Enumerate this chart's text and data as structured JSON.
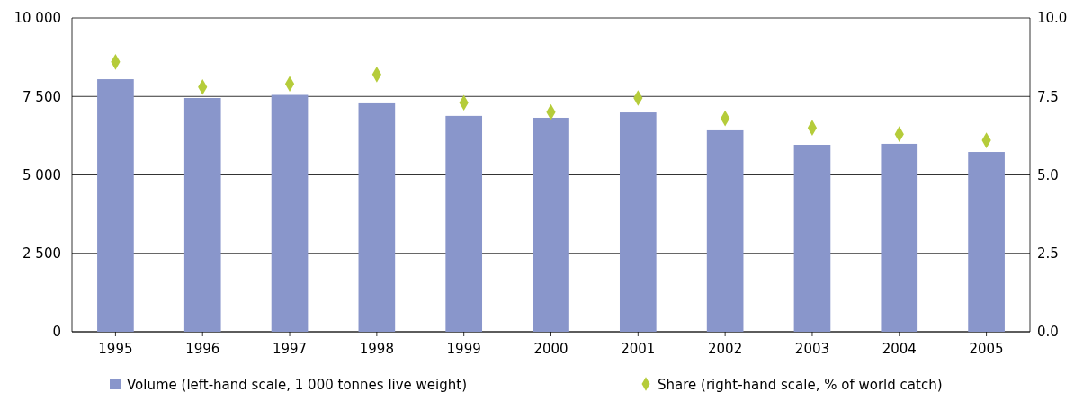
{
  "chart_data": {
    "type": "bar",
    "categories": [
      "1995",
      "1996",
      "1997",
      "1998",
      "1999",
      "2000",
      "2001",
      "2002",
      "2003",
      "2004",
      "2005"
    ],
    "series": [
      {
        "name": "Volume (left-hand scale, 1 000 tonnes live weight)",
        "color": "#8996cb",
        "values": [
          8050,
          7450,
          7550,
          7280,
          6880,
          6820,
          6990,
          6420,
          5960,
          5990,
          5730
        ]
      },
      {
        "name": "Share (right-hand scale, % of world catch)",
        "type": "scatter",
        "axis": "y2",
        "marker": "diamond",
        "color": "#b5cc3a",
        "values": [
          8.6,
          7.8,
          7.9,
          8.2,
          7.3,
          7.0,
          7.45,
          6.8,
          6.5,
          6.3,
          6.1
        ]
      }
    ],
    "ylim": [
      0,
      10000
    ],
    "yticks": [
      {
        "value": 0,
        "label": "0"
      },
      {
        "value": 2500,
        "label": "2 500"
      },
      {
        "value": 5000,
        "label": "5 000"
      },
      {
        "value": 7500,
        "label": "7 500"
      },
      {
        "value": 10000,
        "label": "10 000"
      }
    ],
    "y2lim": [
      0,
      10
    ],
    "y2ticks": [
      {
        "value": 0,
        "label": "0.0"
      },
      {
        "value": 2.5,
        "label": "2.5"
      },
      {
        "value": 5,
        "label": "5.0"
      },
      {
        "value": 7.5,
        "label": "7.5"
      },
      {
        "value": 10,
        "label": "10.0"
      }
    ],
    "grid": "y",
    "legend": "bottom"
  }
}
